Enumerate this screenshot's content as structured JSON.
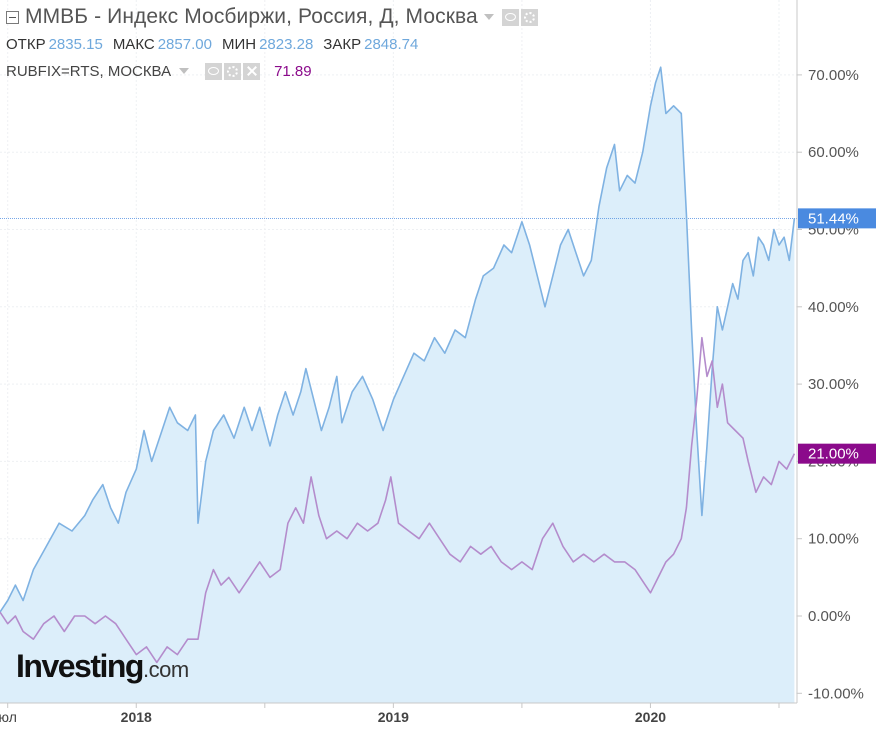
{
  "legend": {
    "title": "ММВБ - Индекс Мосбиржи, Россия, Д, Москва",
    "ohlc": [
      {
        "label": "ОТКР",
        "value": "2835.15"
      },
      {
        "label": "МАКС",
        "value": "2857.00"
      },
      {
        "label": "МИН",
        "value": "2823.28"
      },
      {
        "label": "ЗАКР",
        "value": "2848.74"
      }
    ],
    "comparison": {
      "name": "RUBFIX=RTS, МОСКВА",
      "value": "71.89"
    }
  },
  "logo": {
    "main": "Investing",
    "suffix": ".com"
  },
  "icons": [
    "collapse-icon",
    "caret-down-icon",
    "eye-icon",
    "gear-icon",
    "close-icon"
  ],
  "chart_data": {
    "type": "area",
    "title": "ММВБ - Индекс Мосбиржи, Россия, Д, Москва",
    "y_unit": "%",
    "ylim": [
      -10,
      80
    ],
    "y_ticks": [
      {
        "v": 70,
        "label": "70.00%"
      },
      {
        "v": 60,
        "label": "60.00%"
      },
      {
        "v": 50,
        "label": "50.00%"
      },
      {
        "v": 40,
        "label": "40.00%"
      },
      {
        "v": 30,
        "label": "30.00%"
      },
      {
        "v": 20,
        "label": "20.00%"
      },
      {
        "v": 10,
        "label": "10.00%"
      },
      {
        "v": 0,
        "label": "0.00%"
      },
      {
        "v": -10,
        "label": "-10.00%"
      }
    ],
    "xlim": [
      2017.47,
      2020.57
    ],
    "x_ticks": [
      {
        "x": 2017.5,
        "label": "юл",
        "major": false
      },
      {
        "x": 2018.0,
        "label": "2018",
        "major": true
      },
      {
        "x": 2018.5,
        "label": "",
        "major": false
      },
      {
        "x": 2019.0,
        "label": "2019",
        "major": true
      },
      {
        "x": 2019.5,
        "label": "",
        "major": false
      },
      {
        "x": 2020.0,
        "label": "2020",
        "major": true
      },
      {
        "x": 2020.5,
        "label": "",
        "major": false
      }
    ],
    "last_value_badges": [
      {
        "series": "ММВБ",
        "label": "51.44%",
        "value": 51.44,
        "color": "#4a8ae0"
      },
      {
        "series": "RUBFIX=RTS",
        "label": "21.00%",
        "value": 21.0,
        "color": "#8b0a8b"
      }
    ],
    "series": [
      {
        "name": "ММВБ",
        "color": "#7fb2e2",
        "fill": "#dceefa",
        "points": [
          [
            2017.47,
            0.5
          ],
          [
            2017.5,
            2
          ],
          [
            2017.53,
            4
          ],
          [
            2017.56,
            2
          ],
          [
            2017.6,
            6
          ],
          [
            2017.65,
            9
          ],
          [
            2017.7,
            12
          ],
          [
            2017.75,
            11
          ],
          [
            2017.8,
            13
          ],
          [
            2017.83,
            15
          ],
          [
            2017.87,
            17
          ],
          [
            2017.9,
            14
          ],
          [
            2017.93,
            12
          ],
          [
            2017.96,
            16
          ],
          [
            2018.0,
            19
          ],
          [
            2018.03,
            24
          ],
          [
            2018.06,
            20
          ],
          [
            2018.1,
            24
          ],
          [
            2018.13,
            27
          ],
          [
            2018.16,
            25
          ],
          [
            2018.2,
            24
          ],
          [
            2018.23,
            26
          ],
          [
            2018.24,
            12
          ],
          [
            2018.27,
            20
          ],
          [
            2018.3,
            24
          ],
          [
            2018.34,
            26
          ],
          [
            2018.38,
            23
          ],
          [
            2018.42,
            27
          ],
          [
            2018.45,
            24
          ],
          [
            2018.48,
            27
          ],
          [
            2018.52,
            22
          ],
          [
            2018.55,
            26
          ],
          [
            2018.58,
            29
          ],
          [
            2018.61,
            26
          ],
          [
            2018.64,
            29
          ],
          [
            2018.66,
            32
          ],
          [
            2018.69,
            28
          ],
          [
            2018.72,
            24
          ],
          [
            2018.75,
            27
          ],
          [
            2018.78,
            31
          ],
          [
            2018.8,
            25
          ],
          [
            2018.84,
            29
          ],
          [
            2018.88,
            31
          ],
          [
            2018.92,
            28
          ],
          [
            2018.96,
            24
          ],
          [
            2019.0,
            28
          ],
          [
            2019.04,
            31
          ],
          [
            2019.08,
            34
          ],
          [
            2019.12,
            33
          ],
          [
            2019.16,
            36
          ],
          [
            2019.2,
            34
          ],
          [
            2019.24,
            37
          ],
          [
            2019.28,
            36
          ],
          [
            2019.32,
            41
          ],
          [
            2019.35,
            44
          ],
          [
            2019.39,
            45
          ],
          [
            2019.43,
            48
          ],
          [
            2019.46,
            47
          ],
          [
            2019.5,
            51
          ],
          [
            2019.53,
            48
          ],
          [
            2019.56,
            44
          ],
          [
            2019.59,
            40
          ],
          [
            2019.62,
            44
          ],
          [
            2019.65,
            48
          ],
          [
            2019.68,
            50
          ],
          [
            2019.71,
            47
          ],
          [
            2019.74,
            44
          ],
          [
            2019.77,
            46
          ],
          [
            2019.8,
            53
          ],
          [
            2019.83,
            58
          ],
          [
            2019.86,
            61
          ],
          [
            2019.88,
            55
          ],
          [
            2019.91,
            57
          ],
          [
            2019.94,
            56
          ],
          [
            2019.97,
            60
          ],
          [
            2020.0,
            66
          ],
          [
            2020.02,
            69
          ],
          [
            2020.04,
            71
          ],
          [
            2020.06,
            65
          ],
          [
            2020.09,
            66
          ],
          [
            2020.12,
            65
          ],
          [
            2020.14,
            52
          ],
          [
            2020.16,
            37
          ],
          [
            2020.18,
            24
          ],
          [
            2020.2,
            13
          ],
          [
            2020.22,
            22
          ],
          [
            2020.24,
            32
          ],
          [
            2020.26,
            40
          ],
          [
            2020.28,
            37
          ],
          [
            2020.3,
            40
          ],
          [
            2020.32,
            43
          ],
          [
            2020.34,
            41
          ],
          [
            2020.36,
            46
          ],
          [
            2020.38,
            47
          ],
          [
            2020.4,
            44
          ],
          [
            2020.42,
            49
          ],
          [
            2020.44,
            48
          ],
          [
            2020.46,
            46
          ],
          [
            2020.48,
            50
          ],
          [
            2020.5,
            48
          ],
          [
            2020.52,
            49
          ],
          [
            2020.54,
            46
          ],
          [
            2020.56,
            51.44
          ]
        ]
      },
      {
        "name": "RUBFIX=RTS",
        "color": "#b48ccc",
        "points": [
          [
            2017.47,
            0.5
          ],
          [
            2017.5,
            -1
          ],
          [
            2017.53,
            0
          ],
          [
            2017.56,
            -2
          ],
          [
            2017.6,
            -3
          ],
          [
            2017.64,
            -1
          ],
          [
            2017.68,
            0
          ],
          [
            2017.72,
            -2
          ],
          [
            2017.76,
            0
          ],
          [
            2017.8,
            0
          ],
          [
            2017.84,
            -1
          ],
          [
            2017.88,
            0
          ],
          [
            2017.92,
            -1
          ],
          [
            2017.96,
            -3
          ],
          [
            2018.0,
            -5
          ],
          [
            2018.04,
            -4
          ],
          [
            2018.08,
            -6
          ],
          [
            2018.12,
            -4
          ],
          [
            2018.16,
            -5
          ],
          [
            2018.2,
            -3
          ],
          [
            2018.24,
            -3
          ],
          [
            2018.27,
            3
          ],
          [
            2018.3,
            6
          ],
          [
            2018.33,
            4
          ],
          [
            2018.36,
            5
          ],
          [
            2018.4,
            3
          ],
          [
            2018.44,
            5
          ],
          [
            2018.48,
            7
          ],
          [
            2018.52,
            5
          ],
          [
            2018.56,
            6
          ],
          [
            2018.59,
            12
          ],
          [
            2018.62,
            14
          ],
          [
            2018.65,
            12
          ],
          [
            2018.68,
            18
          ],
          [
            2018.71,
            13
          ],
          [
            2018.74,
            10
          ],
          [
            2018.78,
            11
          ],
          [
            2018.82,
            10
          ],
          [
            2018.86,
            12
          ],
          [
            2018.9,
            11
          ],
          [
            2018.94,
            12
          ],
          [
            2018.97,
            15
          ],
          [
            2018.99,
            18
          ],
          [
            2019.02,
            12
          ],
          [
            2019.06,
            11
          ],
          [
            2019.1,
            10
          ],
          [
            2019.14,
            12
          ],
          [
            2019.18,
            10
          ],
          [
            2019.22,
            8
          ],
          [
            2019.26,
            7
          ],
          [
            2019.3,
            9
          ],
          [
            2019.34,
            8
          ],
          [
            2019.38,
            9
          ],
          [
            2019.42,
            7
          ],
          [
            2019.46,
            6
          ],
          [
            2019.5,
            7
          ],
          [
            2019.54,
            6
          ],
          [
            2019.58,
            10
          ],
          [
            2019.62,
            12
          ],
          [
            2019.66,
            9
          ],
          [
            2019.7,
            7
          ],
          [
            2019.74,
            8
          ],
          [
            2019.78,
            7
          ],
          [
            2019.82,
            8
          ],
          [
            2019.86,
            7
          ],
          [
            2019.9,
            7
          ],
          [
            2019.94,
            6
          ],
          [
            2019.98,
            4
          ],
          [
            2020.0,
            3
          ],
          [
            2020.03,
            5
          ],
          [
            2020.06,
            7
          ],
          [
            2020.09,
            8
          ],
          [
            2020.12,
            10
          ],
          [
            2020.14,
            14
          ],
          [
            2020.16,
            22
          ],
          [
            2020.18,
            28
          ],
          [
            2020.2,
            36
          ],
          [
            2020.22,
            31
          ],
          [
            2020.24,
            33
          ],
          [
            2020.26,
            27
          ],
          [
            2020.28,
            30
          ],
          [
            2020.3,
            25
          ],
          [
            2020.33,
            24
          ],
          [
            2020.36,
            23
          ],
          [
            2020.38,
            20
          ],
          [
            2020.41,
            16
          ],
          [
            2020.44,
            18
          ],
          [
            2020.47,
            17
          ],
          [
            2020.5,
            20
          ],
          [
            2020.53,
            19
          ],
          [
            2020.56,
            21
          ]
        ]
      }
    ]
  }
}
